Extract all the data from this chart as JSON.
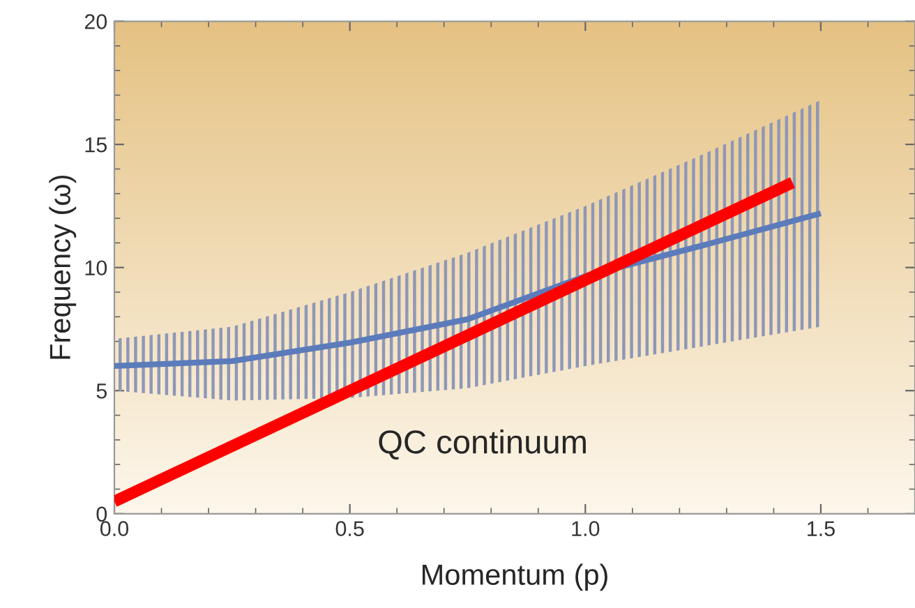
{
  "chart_data": {
    "type": "line",
    "xlabel": "Momentum (p)",
    "ylabel": "Frequency (ω)",
    "xlim": [
      0,
      1.7
    ],
    "ylim": [
      0,
      20
    ],
    "xticks": [
      {
        "value": 0,
        "label": "0.0"
      },
      0.5,
      {
        "value": 1,
        "label": "1.0"
      },
      1.5
    ],
    "yticks": [
      0,
      5,
      10,
      15,
      20
    ],
    "grid": false,
    "legend": false,
    "marker": "none",
    "line_style": "solid",
    "series": [
      {
        "color": "#5b7bbb",
        "x": [
          0,
          0.25,
          0.5,
          0.75,
          1.0,
          1.25,
          1.5
        ],
        "values": [
          6.0,
          6.2,
          6.95,
          7.9,
          9.65,
          10.9,
          12.2
        ],
        "lower": [
          5.0,
          4.6,
          4.7,
          5.1,
          6.0,
          6.8,
          7.6
        ],
        "upper": [
          7.1,
          7.6,
          9.0,
          10.6,
          12.5,
          14.6,
          16.8
        ]
      },
      {
        "color": "#ff0000",
        "x": [
          0,
          1.44
        ],
        "values": [
          0.5,
          13.45
        ]
      }
    ],
    "annotations": [
      "QC continuum"
    ]
  }
}
